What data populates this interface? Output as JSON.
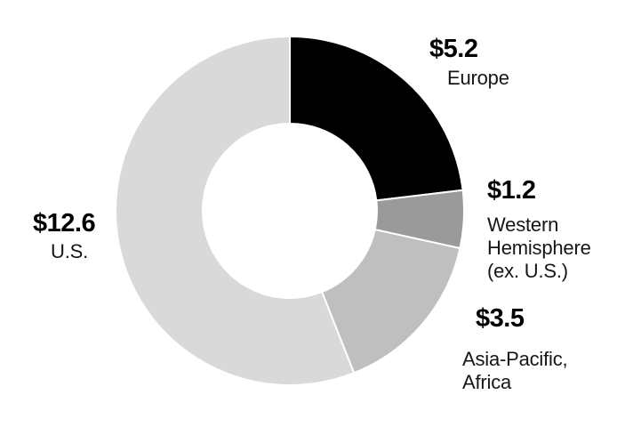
{
  "chart_data": {
    "type": "pie",
    "subtype": "donut",
    "title": "",
    "direction": "clockwise",
    "start_angle_deg": 0,
    "inner_radius_ratio": 0.5,
    "gap_color": "#ffffff",
    "total": 22.5,
    "segments": [
      {
        "id": "europe",
        "name": "Europe",
        "value": 5.2,
        "display_value": "$5.2",
        "display_name": "Europe",
        "color": "#000000"
      },
      {
        "id": "western-hemisphere",
        "name": "Western Hemisphere (ex. U.S.)",
        "value": 1.2,
        "display_value": "$1.2",
        "display_name": "Western\nHemisphere\n(ex. U.S.)",
        "color": "#9a9a9a"
      },
      {
        "id": "asia-pacific-africa",
        "name": "Asia-Pacific, Africa",
        "value": 3.5,
        "display_value": "$3.5",
        "display_name": "Asia-Pacific,\nAfrica",
        "color": "#bfbfbf"
      },
      {
        "id": "us",
        "name": "U.S.",
        "value": 12.6,
        "display_value": "$12.6",
        "display_name": "U.S.",
        "color": "#d9d9d9"
      }
    ]
  }
}
